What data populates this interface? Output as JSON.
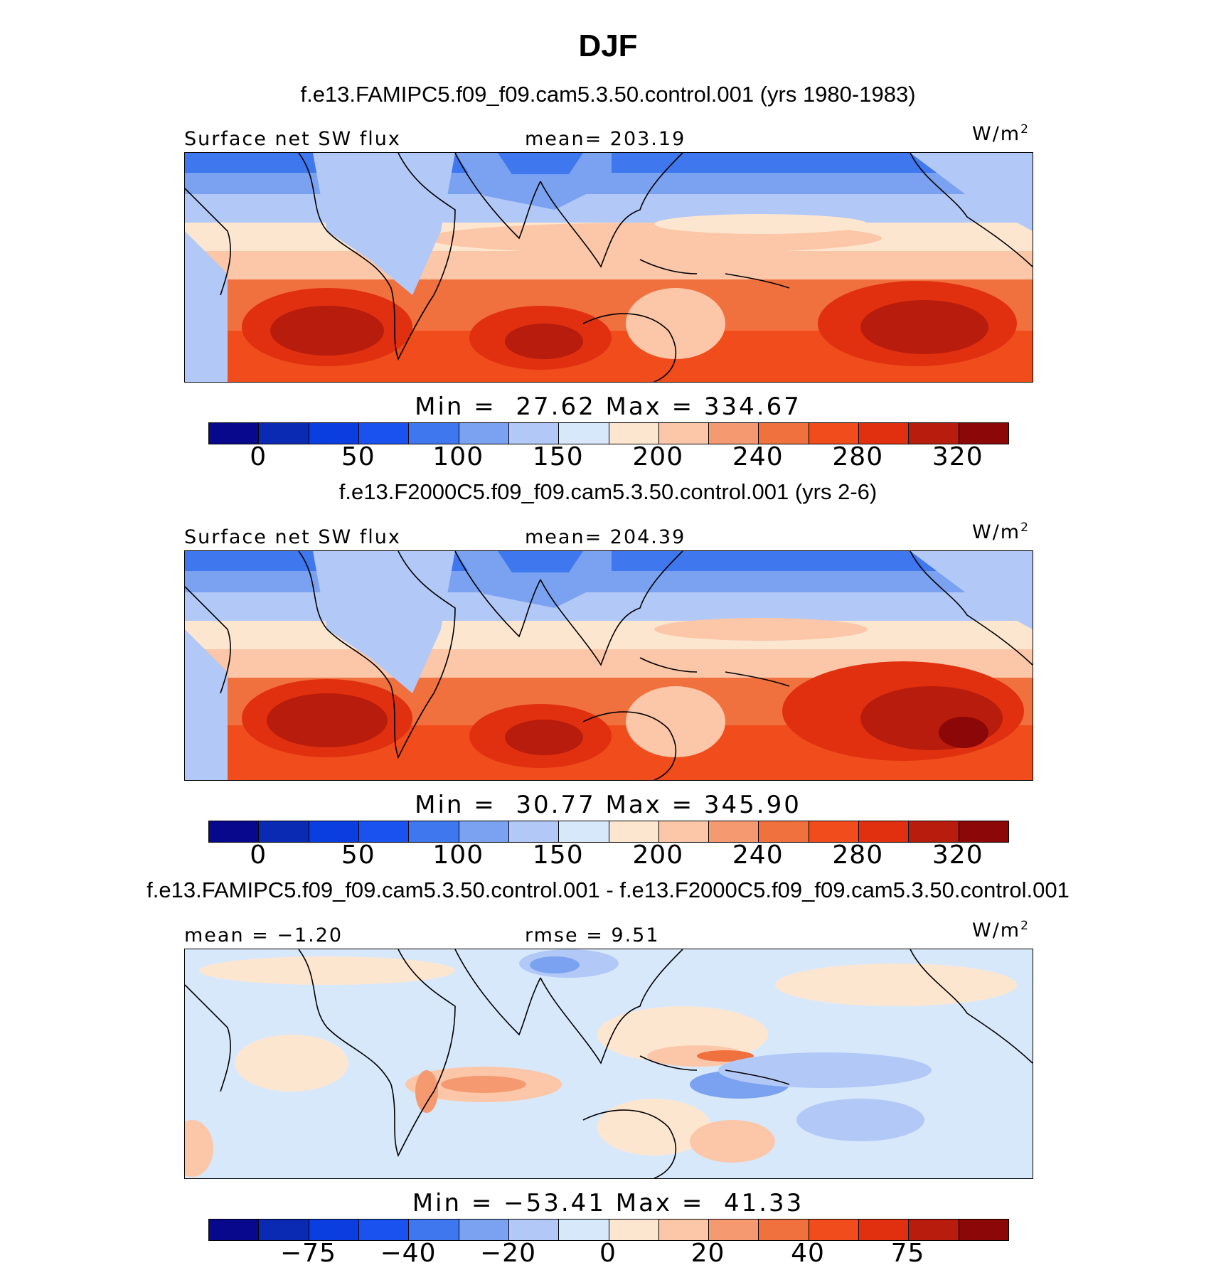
{
  "season": "DJF",
  "palette": {
    "abs": [
      "#08088c",
      "#0a2ab4",
      "#0a3ee0",
      "#1a52f0",
      "#3f77ee",
      "#7ba2f0",
      "#b2c8f7",
      "#d8e8fb",
      "#fde6d0",
      "#fbc7a8",
      "#f59a70",
      "#f0703e",
      "#f04c1c",
      "#e03010",
      "#b81c0c",
      "#8c0808"
    ],
    "diff": [
      "#08088c",
      "#0a2ab4",
      "#0a3ee0",
      "#1a52f0",
      "#3f77ee",
      "#7ba2f0",
      "#b2c8f7",
      "#d8e8fb",
      "#fde6d0",
      "#fbc7a8",
      "#f59a70",
      "#f0703e",
      "#f04c1c",
      "#e03010",
      "#b81c0c",
      "#8c0808"
    ]
  },
  "panels": [
    {
      "case": "f.e13.FAMIPC5.f09_f09.cam5.3.50.control.001 (yrs 1980-1983)",
      "left_label": "Surface net SW flux",
      "center_label": "mean= 203.19",
      "units": "W/m",
      "units_sup": "2",
      "minmax": "Min =  27.62 Max = 334.67",
      "ticks": [
        "0",
        "50",
        "100",
        "150",
        "200",
        "240",
        "280",
        "320"
      ]
    },
    {
      "case": "f.e13.F2000C5.f09_f09.cam5.3.50.control.001 (yrs 2-6)",
      "left_label": "Surface net SW flux",
      "center_label": "mean= 204.39",
      "units": "W/m",
      "units_sup": "2",
      "minmax": "Min =  30.77 Max = 345.90",
      "ticks": [
        "0",
        "50",
        "100",
        "150",
        "200",
        "240",
        "280",
        "320"
      ]
    },
    {
      "case": "f.e13.FAMIPC5.f09_f09.cam5.3.50.control.001 - f.e13.F2000C5.f09_f09.cam5.3.50.control.001",
      "left_label": "mean =  −1.20",
      "center_label": "rmse =   9.51",
      "units": "W/m",
      "units_sup": "2",
      "minmax": "Min = −53.41 Max =  41.33",
      "ticks": [
        "−75",
        "−40",
        "−20",
        "0",
        "20",
        "40",
        "75"
      ]
    }
  ]
}
